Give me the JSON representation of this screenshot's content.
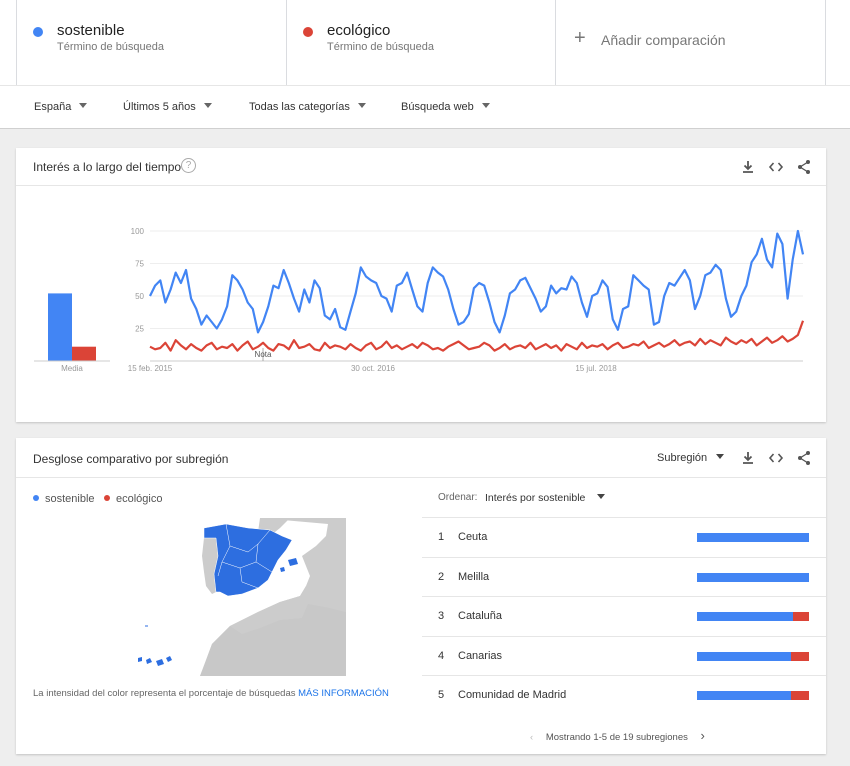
{
  "terms": [
    {
      "name": "sostenible",
      "subtitle": "Término de búsqueda",
      "color": "#4285f4"
    },
    {
      "name": "ecológico",
      "subtitle": "Término de búsqueda",
      "color": "#db4437"
    }
  ],
  "add_comparison": {
    "icon": "plus-icon",
    "label": "Añadir comparación"
  },
  "filters": [
    {
      "label": "España"
    },
    {
      "label": "Últimos 5 años"
    },
    {
      "label": "Todas las categorías"
    },
    {
      "label": "Búsqueda web"
    }
  ],
  "interest_card": {
    "title": "Interés a lo largo del tiempo",
    "help_icon": "?",
    "icons": [
      "download-icon",
      "embed-icon",
      "share-icon"
    ],
    "average_label": "Media",
    "note_label": "Nota",
    "y_ticks": [
      "100",
      "75",
      "50",
      "25"
    ],
    "x_ticks": [
      "15 feb. 2015",
      "30 oct. 2016",
      "15 jul. 2018"
    ]
  },
  "chart_data": {
    "type": "line",
    "xlabel": "",
    "ylabel": "",
    "ylim": [
      0,
      100
    ],
    "grid": true,
    "averages": {
      "sostenible": 52,
      "ecológico": 11
    },
    "series": [
      {
        "name": "sostenible",
        "color": "#4285f4",
        "values": [
          50,
          58,
          62,
          45,
          55,
          68,
          60,
          70,
          48,
          40,
          28,
          35,
          30,
          25,
          32,
          42,
          66,
          62,
          55,
          45,
          40,
          22,
          30,
          42,
          58,
          56,
          70,
          60,
          48,
          38,
          55,
          45,
          62,
          56,
          35,
          32,
          40,
          26,
          24,
          38,
          52,
          72,
          65,
          62,
          60,
          50,
          48,
          38,
          58,
          60,
          68,
          55,
          42,
          38,
          60,
          72,
          68,
          65,
          55,
          40,
          28,
          30,
          36,
          56,
          60,
          58,
          45,
          30,
          22,
          35,
          52,
          55,
          62,
          64,
          56,
          48,
          38,
          42,
          58,
          52,
          56,
          55,
          65,
          60,
          45,
          34,
          50,
          52,
          62,
          57,
          32,
          24,
          40,
          42,
          66,
          62,
          58,
          55,
          28,
          30,
          50,
          60,
          58,
          64,
          70,
          62,
          40,
          50,
          66,
          68,
          74,
          70,
          48,
          34,
          38,
          50,
          58,
          76,
          82,
          94,
          78,
          72,
          98,
          90,
          48,
          78,
          100,
          82
        ]
      },
      {
        "name": "ecológico",
        "color": "#db4437",
        "values": [
          11,
          9,
          10,
          14,
          8,
          16,
          12,
          9,
          13,
          10,
          8,
          12,
          14,
          9,
          11,
          10,
          13,
          8,
          12,
          15,
          9,
          11,
          14,
          10,
          8,
          13,
          12,
          9,
          16,
          10,
          11,
          13,
          9,
          8,
          14,
          10,
          12,
          11,
          9,
          13,
          10,
          8,
          12,
          14,
          9,
          11,
          15,
          10,
          12,
          9,
          11,
          13,
          10,
          14,
          12,
          9,
          10,
          8,
          11,
          13,
          15,
          12,
          9,
          10,
          11,
          14,
          12,
          8,
          10,
          13,
          9,
          11,
          12,
          10,
          14,
          9,
          11,
          13,
          10,
          12,
          8,
          13,
          11,
          9,
          14,
          10,
          12,
          11,
          13,
          9,
          12,
          14,
          10,
          11,
          13,
          12,
          15,
          10,
          12,
          14,
          11,
          13,
          16,
          12,
          14,
          15,
          12,
          17,
          13,
          16,
          14,
          12,
          18,
          15,
          13,
          16,
          14,
          17,
          12,
          15,
          18,
          14,
          16,
          19,
          15,
          17,
          20,
          31
        ]
      }
    ],
    "x_tick_labels": [
      "15 feb. 2015",
      "30 oct. 2016",
      "15 jul. 2018"
    ]
  },
  "regional_card": {
    "title": "Desglose comparativo por subregión",
    "dropdown_label": "Subregión",
    "icons": [
      "download-icon",
      "embed-icon",
      "share-icon"
    ],
    "legend": [
      {
        "name": "sostenible",
        "color": "#4285f4"
      },
      {
        "name": "ecológico",
        "color": "#db4437"
      }
    ],
    "sort_label": "Ordenar:",
    "sort_value": "Interés por sostenible",
    "rows": [
      {
        "rank": "1",
        "name": "Ceuta",
        "share_sostenible": 1.0
      },
      {
        "rank": "2",
        "name": "Melilla",
        "share_sostenible": 1.0
      },
      {
        "rank": "3",
        "name": "Cataluña",
        "share_sostenible": 0.86
      },
      {
        "rank": "4",
        "name": "Canarias",
        "share_sostenible": 0.84
      },
      {
        "rank": "5",
        "name": "Comunidad de Madrid",
        "share_sostenible": 0.84
      }
    ],
    "note_text": "La intensidad del color representa el porcentaje de búsquedas",
    "note_link": "MÁS INFORMACIÓN",
    "pager_text": "Mostrando 1-5 de 19 subregiones"
  }
}
